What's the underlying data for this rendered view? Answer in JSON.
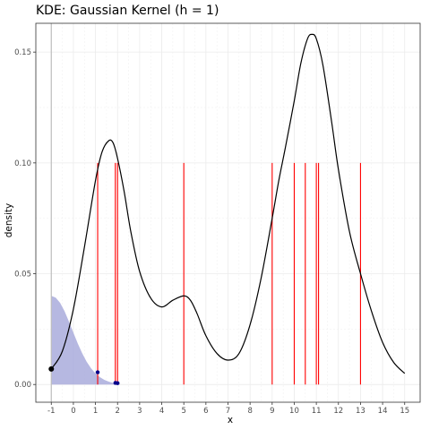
{
  "chart_data": {
    "type": "line",
    "title": "KDE: Gaussian Kernel (h = 1)",
    "xlabel": "x",
    "ylabel": "density",
    "xlim": [
      -1.7,
      15.7
    ],
    "ylim": [
      -0.008,
      0.163
    ],
    "x_ticks": [
      -1,
      0,
      1,
      2,
      3,
      4,
      5,
      6,
      7,
      8,
      9,
      10,
      11,
      12,
      13,
      14,
      15
    ],
    "y_ticks": [
      0.0,
      0.05,
      0.1,
      0.15
    ],
    "y_tick_labels": [
      "0.00",
      "0.05",
      "0.10",
      "0.15"
    ],
    "grid": true,
    "colors": {
      "kde_line": "#000000",
      "observations": "#ff0000",
      "kernel_fill": "#a9acdc",
      "kernel_points": "#00008b",
      "cursor_line": "#bebebe",
      "panel_border": "#333333",
      "grid": "#ebebeb"
    },
    "series": [
      {
        "role": "kde_curve",
        "x": [
          -1.0,
          -0.5,
          0.0,
          0.5,
          1.0,
          1.3,
          1.6,
          1.8,
          2.0,
          2.3,
          2.6,
          3.0,
          3.5,
          4.0,
          4.5,
          5.0,
          5.3,
          5.6,
          6.0,
          6.5,
          7.0,
          7.5,
          8.0,
          8.5,
          9.0,
          9.3,
          9.6,
          10.0,
          10.3,
          10.6,
          10.8,
          11.0,
          11.3,
          11.7,
          12.0,
          12.5,
          13.0,
          13.5,
          14.0,
          14.5,
          15.0
        ],
        "y": [
          0.007,
          0.015,
          0.034,
          0.062,
          0.092,
          0.105,
          0.11,
          0.109,
          0.102,
          0.087,
          0.069,
          0.051,
          0.039,
          0.035,
          0.038,
          0.04,
          0.038,
          0.032,
          0.022,
          0.014,
          0.011,
          0.014,
          0.027,
          0.048,
          0.075,
          0.092,
          0.107,
          0.128,
          0.145,
          0.156,
          0.158,
          0.156,
          0.144,
          0.118,
          0.097,
          0.069,
          0.05,
          0.033,
          0.019,
          0.01,
          0.005
        ]
      },
      {
        "role": "kernel_area",
        "x": [
          -1.0,
          -0.8,
          -0.6,
          -0.4,
          -0.2,
          0.0,
          0.2,
          0.4,
          0.6,
          0.8,
          1.0,
          1.2,
          1.4,
          1.6,
          1.8,
          2.0,
          2.1
        ],
        "y": [
          0.04,
          0.0392,
          0.0368,
          0.0331,
          0.0284,
          0.0234,
          0.0185,
          0.0141,
          0.0103,
          0.0073,
          0.005,
          0.0033,
          0.0021,
          0.0013,
          0.0007,
          0.0004,
          0.0003
        ]
      }
    ],
    "observations": [
      1.1,
      1.9,
      2.0,
      5.0,
      9.0,
      10.0,
      10.5,
      11.0,
      11.1,
      13.0
    ],
    "observation_height": 0.1,
    "cursor_x": -1.0,
    "cursor_point": {
      "x": -1.0,
      "y": 0.007
    },
    "kernel_points": [
      {
        "x": 1.1,
        "y": 0.0055
      },
      {
        "x": 1.9,
        "y": 0.0007
      },
      {
        "x": 2.0,
        "y": 0.0006
      }
    ]
  }
}
